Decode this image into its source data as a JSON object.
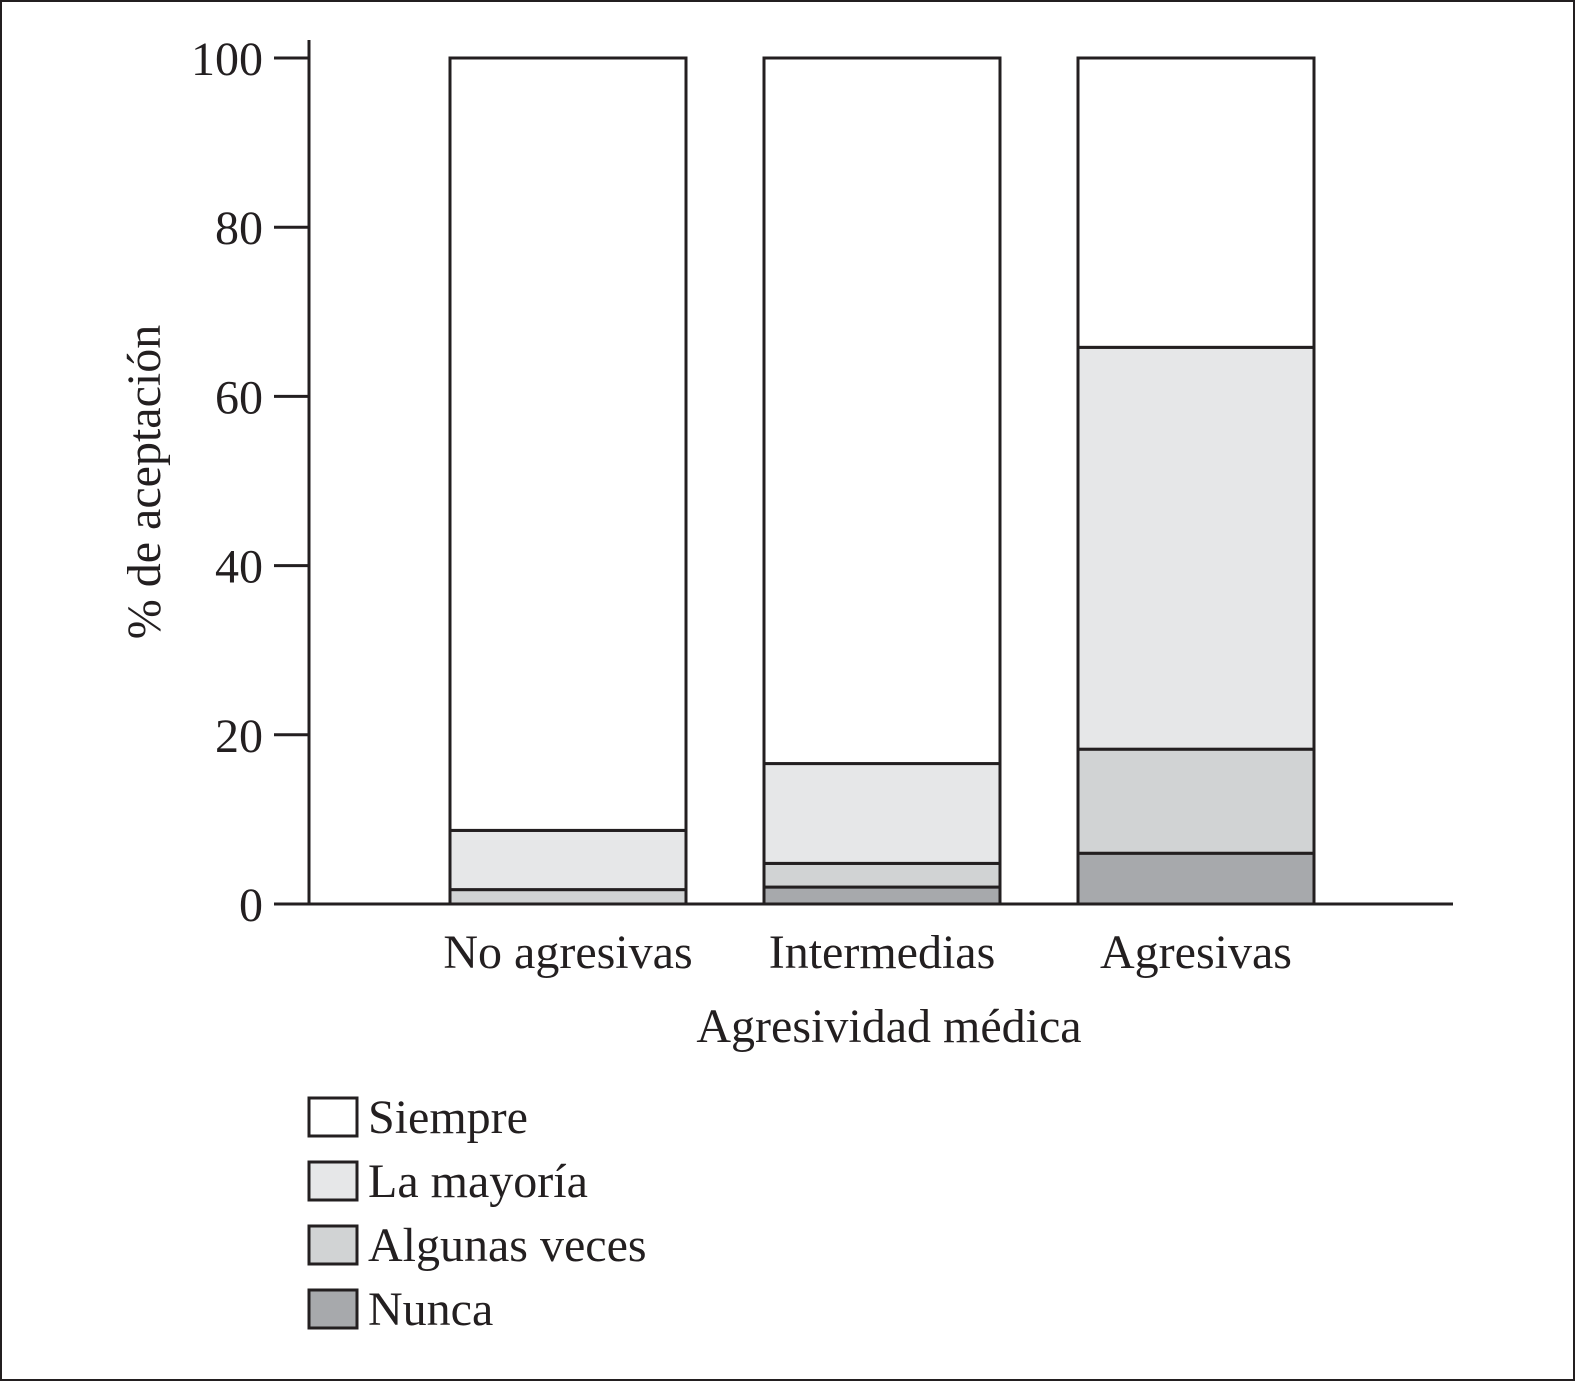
{
  "chart_data": {
    "type": "bar",
    "stacked": true,
    "categories": [
      "No agresivas",
      "Intermedias",
      "Agresivas"
    ],
    "series": [
      {
        "name": "Nunca",
        "values": [
          0,
          2,
          6
        ],
        "color": "#a7a9ac"
      },
      {
        "name": "Algunas veces",
        "values": [
          1.7,
          2.8,
          12.3
        ],
        "color": "#d1d3d4"
      },
      {
        "name": "La mayoría",
        "values": [
          7,
          11.8,
          47.5
        ],
        "color": "#e6e7e8"
      },
      {
        "name": "Siempre",
        "values": [
          91.3,
          83.4,
          34.2
        ],
        "color": "#ffffff"
      }
    ],
    "xlabel": "Agresividad médica",
    "ylabel": "% de aceptación",
    "ylim": [
      0,
      100
    ],
    "yticks": [
      0,
      20,
      40,
      60,
      80,
      100
    ],
    "grid": false,
    "legend_placement": "bottom-left",
    "legend_order": [
      "Siempre",
      "La mayoría",
      "Algunas veces",
      "Nunca"
    ]
  }
}
